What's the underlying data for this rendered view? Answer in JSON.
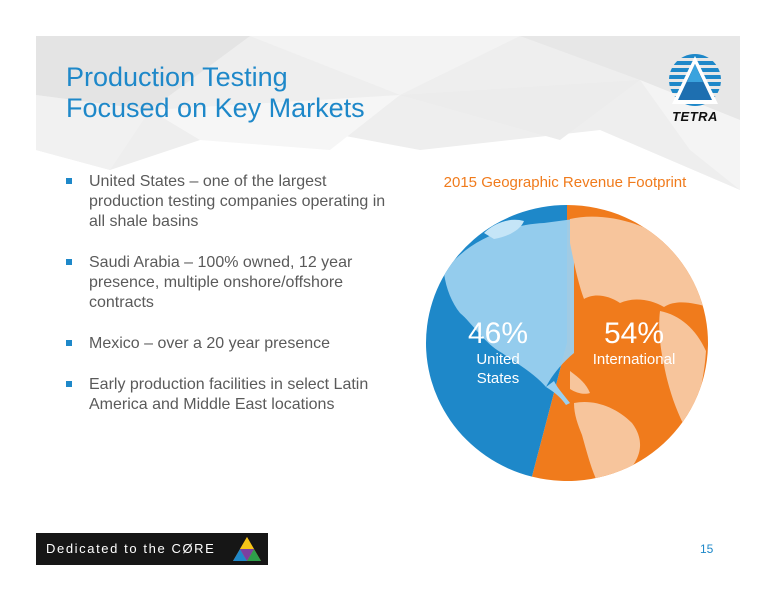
{
  "slide": {
    "title_line1": "Production Testing",
    "title_line2": "Focused on Key Markets",
    "logo_text": "TETRA",
    "bullets": [
      {
        "text": "United States – one of the largest production testing companies operating in all shale basins"
      },
      {
        "text": "Saudi Arabia – 100% owned, 12 year presence, multiple onshore/offshore contracts"
      },
      {
        "text": "Mexico – over a 20 year presence"
      },
      {
        "text": "Early production facilities in select Latin America and Middle East locations"
      }
    ],
    "footer_banner": "Dedicated to the CØRE",
    "page_number": "15",
    "colors": {
      "title_blue": "#1e88c9",
      "us_blue": "#1e88c9",
      "intl_orange": "#f07b1c",
      "chart_title_orange": "#f07b1c"
    }
  },
  "chart_data": {
    "type": "pie",
    "title": "2015 Geographic Revenue Footprint",
    "slices": [
      {
        "name": "United States",
        "value": 46,
        "label_pct": "46%",
        "label_line1": "United",
        "label_line2": "States",
        "color": "#1e88c9"
      },
      {
        "name": "International",
        "value": 54,
        "label_pct": "54%",
        "label_line1": "International",
        "label_line2": "",
        "color": "#f07b1c"
      }
    ]
  }
}
